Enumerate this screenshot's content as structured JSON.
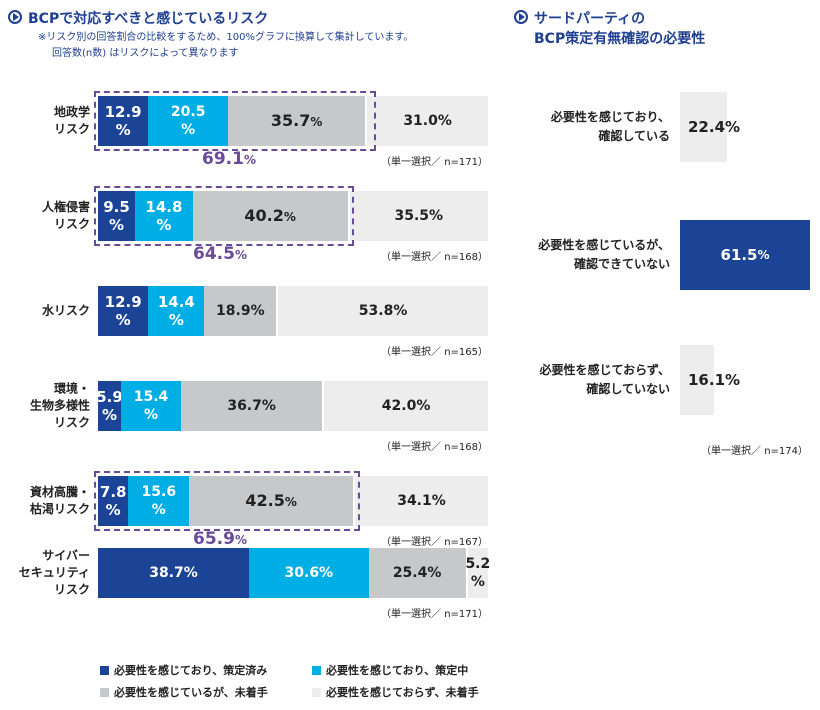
{
  "left_panel": {
    "title": "BCPで対応すべきと感じているリスク",
    "note_line1": "※リスク別の回答割合の比較をするため、100%グラフに換算して集計しています。",
    "note_line2": "回答数(n数) はリスクによって異なります",
    "icon": "play-circle-icon"
  },
  "right_panel": {
    "title_line1": "サードパーティの",
    "title_line2": "BCP策定有無確認の必要性",
    "icon": "play-circle-icon"
  },
  "colors": {
    "dark_blue": "#1b4497",
    "light_blue": "#00aee6",
    "gray": "#c7c8c9",
    "light_gray": "#ededee",
    "purple": "#6a4b99"
  },
  "chart_data": [
    {
      "type": "bar",
      "orientation": "horizontal",
      "stacked": true,
      "normalized_percent": true,
      "title": "BCPで対応すべきと感じているリスク",
      "series_names": [
        "必要性を感じており、策定済み",
        "必要性を感じており、策定中",
        "必要性を感じているが、未着手",
        "必要性を感じておらず、未着手"
      ],
      "categories": [
        {
          "label_lines": [
            "地政学",
            "リスク"
          ],
          "values": [
            12.9,
            20.5,
            35.7,
            31.0
          ],
          "value_texts": [
            [
              "12.9",
              "%"
            ],
            [
              "20.5",
              "%"
            ],
            [
              "35.7",
              "%"
            ],
            [
              "31.0%"
            ]
          ],
          "cumulative_text": "69.1",
          "cumulative_unit": "%",
          "n_label": "（単一選択／ n=171）"
        },
        {
          "label_lines": [
            "人権侵害",
            "リスク"
          ],
          "values": [
            9.5,
            14.8,
            40.2,
            35.5
          ],
          "value_texts": [
            [
              "9.5",
              "%"
            ],
            [
              "14.8",
              "%"
            ],
            [
              "40.2",
              "%"
            ],
            [
              "35.5%"
            ]
          ],
          "cumulative_text": "64.5",
          "cumulative_unit": "%",
          "n_label": "（単一選択／ n=168）"
        },
        {
          "label_lines": [
            "水リスク"
          ],
          "values": [
            12.9,
            14.4,
            18.9,
            53.8
          ],
          "value_texts": [
            [
              "12.9",
              "%"
            ],
            [
              "14.4",
              "%"
            ],
            [
              "18.9%"
            ],
            [
              "53.8%"
            ]
          ],
          "n_label": "（単一選択／ n=165）"
        },
        {
          "label_lines": [
            "環境・",
            "生物多様性",
            "リスク"
          ],
          "values": [
            5.9,
            15.4,
            36.7,
            42.0
          ],
          "value_texts": [
            [
              "5.9",
              "%"
            ],
            [
              "15.4",
              "%"
            ],
            [
              "36.7%"
            ],
            [
              "42.0%"
            ]
          ],
          "n_label": "（単一選択／ n=168）"
        },
        {
          "label_lines": [
            "資材高騰・",
            "枯渇リスク"
          ],
          "values": [
            7.8,
            15.6,
            42.5,
            34.1
          ],
          "value_texts": [
            [
              "7.8",
              "%"
            ],
            [
              "15.6",
              "%"
            ],
            [
              "42.5",
              "%"
            ],
            [
              "34.1%"
            ]
          ],
          "cumulative_text": "65.9",
          "cumulative_unit": "%",
          "n_label": "（単一選択／ n=167）"
        },
        {
          "label_lines": [
            "サイバー",
            "セキュリティ",
            "リスク"
          ],
          "values": [
            38.7,
            30.6,
            25.4,
            5.2
          ],
          "value_texts": [
            [
              "38.7%"
            ],
            [
              "30.6%"
            ],
            [
              "25.4%"
            ],
            [
              "5.2",
              "%"
            ]
          ],
          "n_label": "（単一選択／ n=171）"
        }
      ],
      "legend": [
        "必要性を感じており、策定済み",
        "必要性を感じており、策定中",
        "必要性を感じているが、未着手",
        "必要性を感じておらず、未着手"
      ],
      "legend_placement": "bottom"
    },
    {
      "type": "bar",
      "orientation": "horizontal",
      "title": "サードパーティのBCP策定有無確認の必要性",
      "categories": [
        {
          "label_lines": [
            "必要性を感じており、",
            "確認している"
          ],
          "value": 22.4,
          "value_text": "22.4%",
          "highlight": false
        },
        {
          "label_lines": [
            "必要性を感じているが、",
            "確認できていない"
          ],
          "value": 61.5,
          "value_text": "61.5",
          "value_unit": "%",
          "highlight": true
        },
        {
          "label_lines": [
            "必要性を感じておらず、",
            "確認していない"
          ],
          "value": 16.1,
          "value_text": "16.1%",
          "highlight": false
        }
      ],
      "n_label": "（単一選択／ n=174）"
    }
  ]
}
